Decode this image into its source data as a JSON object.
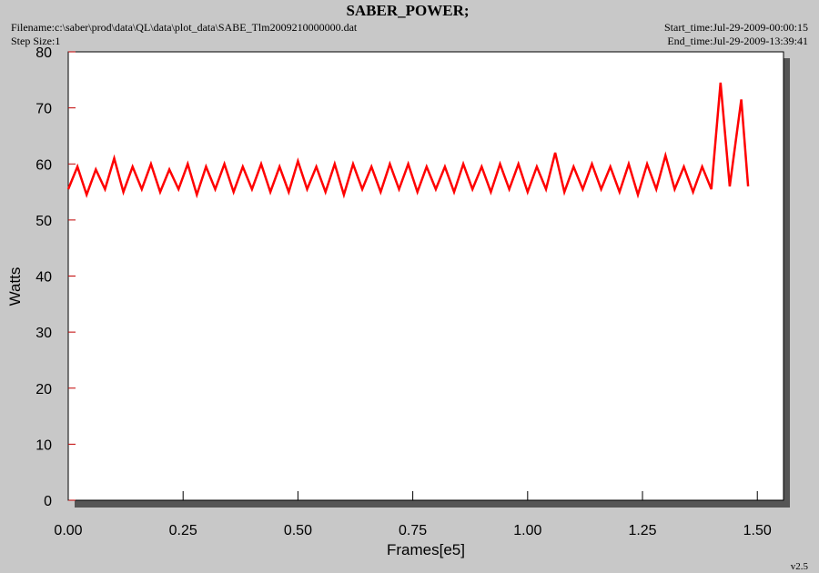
{
  "chart_data": {
    "type": "line",
    "title": "SABER_POWER;",
    "filename": "Filename:c:\\saber\\prod\\data\\QL\\data\\plot_data\\SABE_Tlm2009210000000.dat",
    "step_size": "Step Size:1",
    "start_time": "Start_time:Jul-29-2009-00:00:15",
    "end_time": "End_time:Jul-29-2009-13:39:41",
    "version": "v2.5",
    "x_label": "Frames[e5]",
    "y_label": "Watts",
    "xlim": [
      0,
      1.557
    ],
    "ylim": [
      0,
      80
    ],
    "xticks": [
      {
        "value": 0,
        "label": "0.00"
      },
      {
        "value": 0.25,
        "label": "0.25"
      },
      {
        "value": 0.5,
        "label": "0.50"
      },
      {
        "value": 0.75,
        "label": "0.75"
      },
      {
        "value": 1,
        "label": "1.00"
      },
      {
        "value": 1.25,
        "label": "1.25"
      },
      {
        "value": 1.5,
        "label": "1.50"
      }
    ],
    "yticks": [
      0,
      10,
      20,
      30,
      40,
      50,
      60,
      70,
      80
    ],
    "x": [
      0.0,
      0.02,
      0.04,
      0.06,
      0.08,
      0.1,
      0.12,
      0.14,
      0.16,
      0.18,
      0.2,
      0.22,
      0.24,
      0.26,
      0.28,
      0.3,
      0.32,
      0.34,
      0.36,
      0.38,
      0.4,
      0.42,
      0.44,
      0.46,
      0.48,
      0.5,
      0.52,
      0.54,
      0.56,
      0.58,
      0.6,
      0.62,
      0.64,
      0.66,
      0.68,
      0.7,
      0.72,
      0.74,
      0.76,
      0.78,
      0.8,
      0.82,
      0.84,
      0.86,
      0.88,
      0.9,
      0.92,
      0.94,
      0.96,
      0.98,
      1.0,
      1.02,
      1.04,
      1.06,
      1.08,
      1.1,
      1.12,
      1.14,
      1.16,
      1.18,
      1.2,
      1.22,
      1.24,
      1.26,
      1.28,
      1.3,
      1.32,
      1.34,
      1.36,
      1.38,
      1.4,
      1.42,
      1.44,
      1.465,
      1.48
    ],
    "series": [
      {
        "color": "#ff0000",
        "values": [
          55.5,
          59.5,
          54.5,
          59,
          55.5,
          61,
          55,
          59.5,
          55.5,
          60,
          55,
          59,
          55.5,
          60,
          54.5,
          59.5,
          55.5,
          60,
          55,
          59.5,
          55.5,
          60,
          55,
          59.5,
          55,
          60.5,
          55.5,
          59.5,
          55,
          60,
          54.5,
          60,
          55.5,
          59.5,
          55,
          60,
          55.5,
          60,
          55,
          59.5,
          55.5,
          59.5,
          55,
          60,
          55.5,
          59.5,
          55,
          60,
          55.5,
          60,
          55,
          59.5,
          55.5,
          62,
          55,
          59.5,
          55.5,
          60,
          55.5,
          59.5,
          55,
          60,
          54.5,
          60,
          55.5,
          61.5,
          55.5,
          59.5,
          55,
          59.5,
          55.5,
          74.5,
          56,
          71.5,
          56
        ]
      }
    ]
  }
}
